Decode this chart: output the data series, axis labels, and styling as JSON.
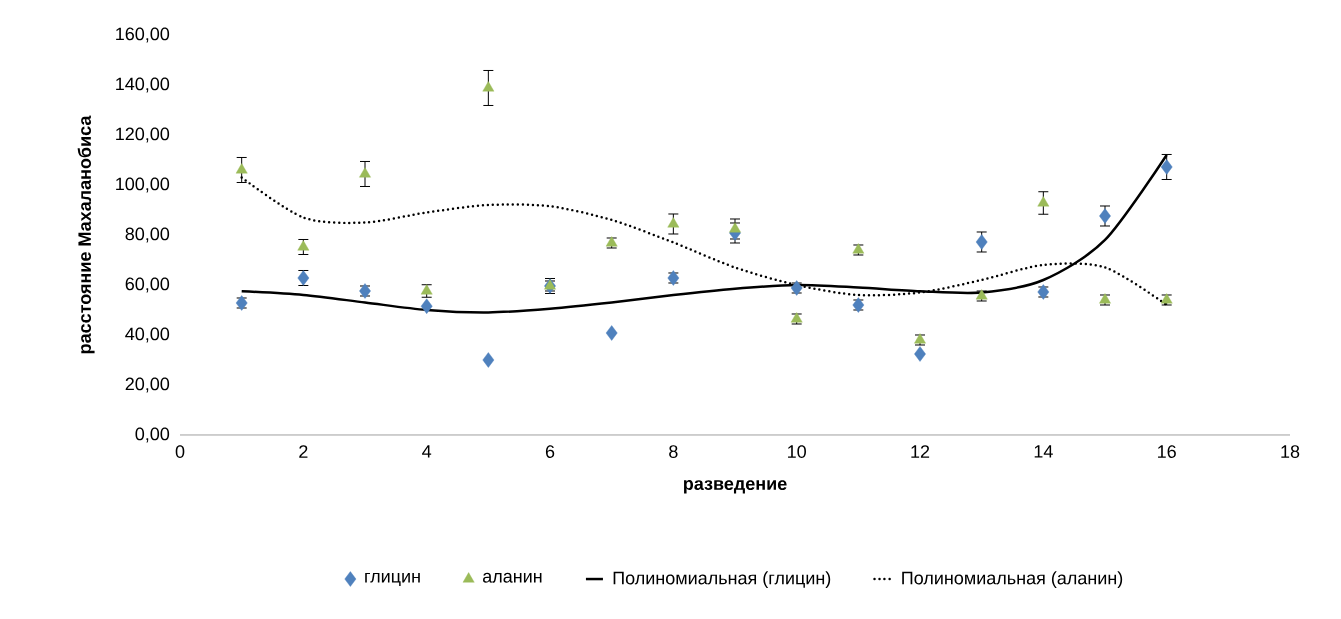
{
  "chart_data": {
    "type": "scatter",
    "xlabel": "разведение",
    "ylabel": "расстояние Махаланобиса",
    "x": [
      1,
      2,
      3,
      4,
      5,
      6,
      7,
      8,
      9,
      10,
      11,
      12,
      13,
      14,
      15,
      16
    ],
    "series": [
      {
        "name": "глицин",
        "color": "#4f81bd",
        "marker": "diamond",
        "values": [
          52.8,
          62.8,
          57.6,
          51.5,
          30,
          59.6,
          40.8,
          62.8,
          80.8,
          58.8,
          52,
          32.4,
          77.2,
          57.2,
          87.6,
          107.2
        ],
        "errors": [
          2,
          3,
          2,
          null,
          null,
          3,
          null,
          2,
          4,
          2,
          2,
          null,
          4,
          2,
          4,
          5
        ]
      },
      {
        "name": "аланин",
        "color": "#9bbb59",
        "marker": "triangle",
        "values": [
          106,
          75.2,
          104.4,
          57.6,
          138.8,
          59.6,
          76.8,
          84.4,
          82.4,
          46.4,
          74,
          38,
          55.6,
          92.8,
          54,
          54
        ],
        "errors": [
          5,
          3,
          5,
          2.5,
          7,
          2,
          2,
          4,
          4,
          2,
          2,
          2,
          2,
          4.5,
          2,
          2
        ]
      },
      {
        "name": "Полиномиальная (глицин)",
        "type": "line",
        "color": "#000000",
        "marker": "none",
        "line_style": "solid",
        "values": [
          57.5,
          56,
          53,
          50,
          49,
          50.5,
          53,
          56,
          58.5,
          60,
          59,
          57.5,
          57,
          62,
          78,
          112
        ]
      },
      {
        "name": "Полиномиальная (аланин)",
        "type": "line",
        "color": "#000000",
        "marker": "none",
        "line_style": "dotted",
        "values": [
          103,
          87,
          85,
          89,
          92,
          91.5,
          86,
          77,
          67,
          60,
          56,
          57,
          62,
          68,
          67,
          52
        ]
      }
    ],
    "xlim": [
      0,
      18
    ],
    "xticks": [
      0,
      2,
      4,
      6,
      8,
      10,
      12,
      14,
      16,
      18
    ],
    "ylim": [
      0,
      160
    ],
    "yticks": [
      {
        "value": 0,
        "label": "0,00"
      },
      {
        "value": 20,
        "label": "20,00"
      },
      {
        "value": 40,
        "label": "40,00"
      },
      {
        "value": 60,
        "label": "60,00"
      },
      {
        "value": 80,
        "label": "80,00"
      },
      {
        "value": 100,
        "label": "100,00"
      },
      {
        "value": 120,
        "label": "120,00"
      },
      {
        "value": 140,
        "label": "140,00"
      },
      {
        "value": 160,
        "label": "160,00"
      }
    ],
    "legend": "bottom"
  }
}
